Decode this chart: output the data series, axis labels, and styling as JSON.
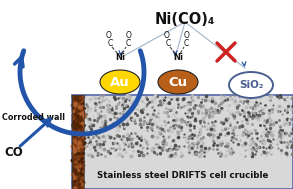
{
  "title": "Ni(CO)₄",
  "bg_color": "#ffffff",
  "au_color": "#FFD700",
  "cu_color": "#B8601A",
  "sio2_border": "#4a6090",
  "arrow_color": "#2255aa",
  "xmark_color": "#cc2222",
  "label_au": "Au",
  "label_cu": "Cu",
  "label_sio2": "SiO₂",
  "label_co": "CO",
  "label_corroded": "Corroded wall",
  "label_crucible": "Stainless steel DRIFTS cell crucible",
  "figsize": [
    2.93,
    1.89
  ],
  "dpi": 100
}
